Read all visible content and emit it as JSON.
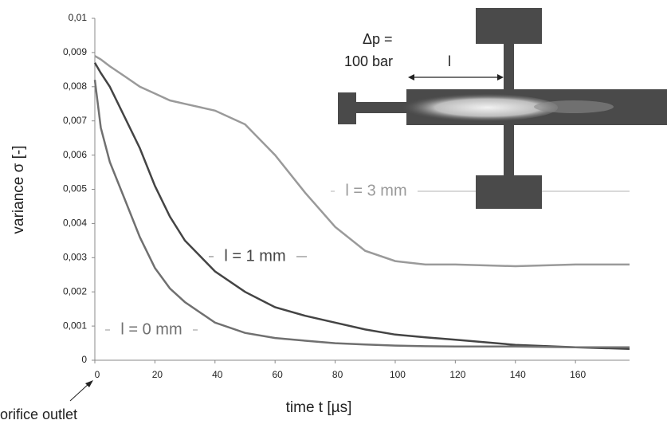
{
  "chart_data": {
    "type": "line",
    "x_label": "time t [µs]",
    "y_label": "variance σ [-]",
    "x": [
      0,
      2,
      5,
      10,
      15,
      20,
      25,
      30,
      40,
      50,
      60,
      70,
      80,
      90,
      100,
      110,
      120,
      140,
      160,
      178
    ],
    "series": [
      {
        "name": "l = 3 mm",
        "color": "#9a9a9a",
        "values": [
          0.0089,
          0.0088,
          0.0086,
          0.0083,
          0.008,
          0.0078,
          0.0076,
          0.0075,
          0.0073,
          0.0069,
          0.006,
          0.0049,
          0.0039,
          0.0032,
          0.0029,
          0.0028,
          0.0028,
          0.00275,
          0.0028,
          0.0028
        ]
      },
      {
        "name": "l = 1 mm",
        "color": "#444444",
        "values": [
          0.0087,
          0.0084,
          0.008,
          0.0071,
          0.0062,
          0.0051,
          0.0042,
          0.0035,
          0.0026,
          0.002,
          0.00155,
          0.0013,
          0.0011,
          0.0009,
          0.00075,
          0.00067,
          0.0006,
          0.00045,
          0.00038,
          0.00033
        ]
      },
      {
        "name": "l = 0 mm",
        "color": "#707070",
        "values": [
          0.0082,
          0.0068,
          0.0058,
          0.0047,
          0.0036,
          0.0027,
          0.0021,
          0.0017,
          0.0011,
          0.0008,
          0.00065,
          0.00057,
          0.0005,
          0.00046,
          0.00043,
          0.00041,
          0.0004,
          0.0004,
          0.00038,
          0.00038
        ]
      }
    ],
    "xlim": [
      0,
      178
    ],
    "xticks": [
      0,
      20,
      40,
      60,
      80,
      100,
      120,
      140,
      160
    ],
    "ylim": [
      0,
      0.01
    ],
    "yticks": [
      0,
      {
        "value": 0.001,
        "label": "0,001"
      },
      {
        "value": 0.002,
        "label": "0,002"
      },
      {
        "value": 0.003,
        "label": "0,003"
      },
      {
        "value": 0.004,
        "label": "0,004"
      },
      {
        "value": 0.005,
        "label": "0,005"
      },
      {
        "value": 0.006,
        "label": "0,006"
      },
      {
        "value": 0.007,
        "label": "0,007"
      },
      {
        "value": 0.008,
        "label": "0,008"
      },
      {
        "value": 0.009,
        "label": "0,009"
      },
      {
        "value": 0.01,
        "label": "0,01"
      }
    ],
    "grid": false,
    "annotations": [
      "Δp =",
      "100 bar",
      "l",
      "orifice outlet"
    ]
  }
}
